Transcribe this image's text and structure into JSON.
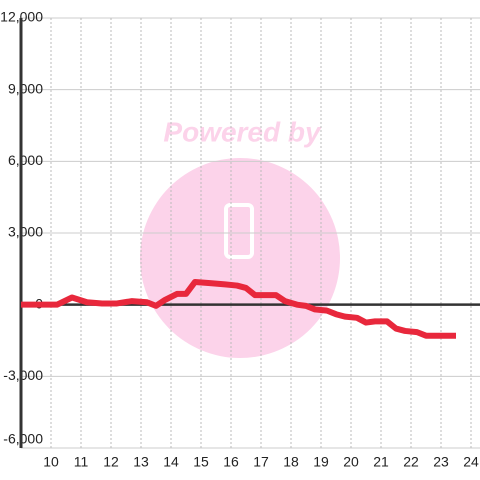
{
  "chart_data": {
    "type": "line",
    "watermark": "Powered by",
    "x": [
      9.0,
      10.2,
      10.7,
      11.2,
      11.7,
      12.2,
      12.7,
      13.2,
      13.5,
      13.8,
      14.2,
      14.5,
      14.8,
      15.3,
      15.8,
      16.2,
      16.5,
      16.8,
      17.2,
      17.5,
      17.8,
      18.2,
      18.5,
      18.8,
      19.2,
      19.5,
      19.8,
      20.2,
      20.5,
      20.8,
      21.2,
      21.5,
      21.8,
      22.2,
      22.5,
      22.8,
      23.2,
      23.5
    ],
    "series": [
      {
        "color": "#e8283c",
        "values": [
          0,
          0,
          300,
          100,
          50,
          50,
          150,
          100,
          -50,
          200,
          450,
          450,
          950,
          900,
          850,
          800,
          700,
          400,
          400,
          400,
          150,
          0,
          -50,
          -200,
          -250,
          -400,
          -500,
          -550,
          -750,
          -700,
          -700,
          -1000,
          -1100,
          -1150,
          -1300,
          -1300,
          -1300,
          -1300
        ]
      }
    ],
    "xlim": [
      9,
      24.3
    ],
    "xticks": [
      10,
      11,
      12,
      13,
      14,
      15,
      16,
      17,
      18,
      19,
      20,
      21,
      22,
      23,
      24
    ],
    "ylim": [
      -6000,
      12000
    ],
    "yticks": [
      {
        "value": -6000,
        "label": "-6,000"
      },
      {
        "value": -3000,
        "label": "-3,000"
      },
      0,
      {
        "value": 3000,
        "label": "3,000"
      },
      {
        "value": 6000,
        "label": "6,000"
      },
      {
        "value": 9000,
        "label": "9,000"
      },
      {
        "value": 12000,
        "label": "12,000"
      }
    ],
    "grid": true
  }
}
